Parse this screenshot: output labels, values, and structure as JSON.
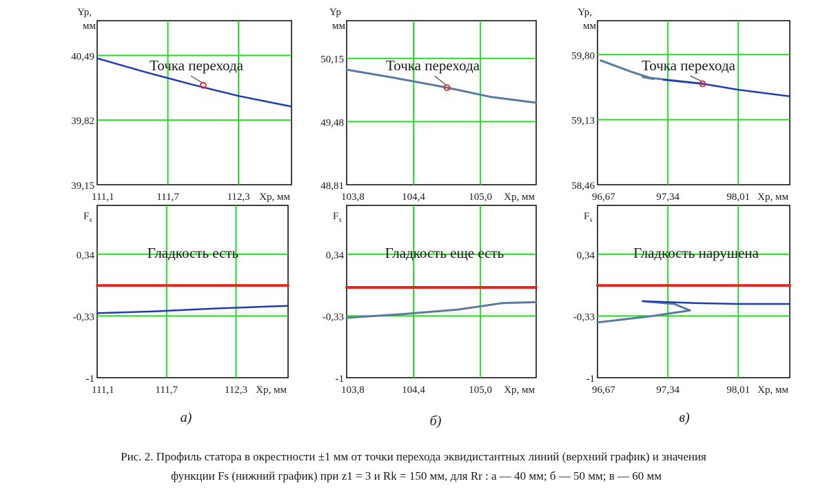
{
  "caption": {
    "line1": "Рис. 2. Профиль статора в окрестности ±1 мм от точки перехода эквидистантных линий (верхний график) и значения",
    "line2": "функции Fs (нижний график) при  z1 = 3  и  Rk = 150 мм,  для Rr : а — 40 мм;  б — 50 мм; в — 60 мм"
  },
  "colors": {
    "grid": "#22dd22",
    "profile": "#1e3bb0",
    "profile_alt": "#5a7aa0",
    "threshold": "#e8251f",
    "marker": "#e8251f",
    "frame": "#000000"
  },
  "chart_data": [
    {
      "type": "line",
      "panel": "а) top",
      "xlabel": "Xp, мм",
      "ylabel": "Yp, мм",
      "ylabel_line1": "Yp,",
      "ylabel_line2": "мм",
      "xlim": [
        111.1,
        112.75
      ],
      "ylim": [
        39.15,
        40.85
      ],
      "xticks": [
        111.1,
        111.7,
        112.3
      ],
      "xtick_labels": [
        "111,1",
        "111,7",
        "112,3"
      ],
      "yticks": [
        39.15,
        39.82,
        40.49
      ],
      "ytick_labels": [
        "39,15",
        "39,82",
        "40,49"
      ],
      "annotation": "Точка перехода",
      "marker_point": {
        "x": 112.0,
        "y": 40.18
      },
      "series": [
        {
          "x": [
            111.1,
            111.5,
            111.9,
            112.3,
            112.75
          ],
          "y": [
            40.46,
            40.32,
            40.19,
            40.07,
            39.96
          ],
          "color": "profile",
          "width": 2.5
        }
      ]
    },
    {
      "type": "line",
      "panel": "б) top",
      "xlabel": "Xp, мм",
      "ylabel": "Yp, мм",
      "ylabel_line1": "Yp",
      "ylabel_line2": "мм",
      "xlim": [
        103.8,
        105.5
      ],
      "ylim": [
        48.81,
        50.55
      ],
      "xticks": [
        103.8,
        104.4,
        105.0
      ],
      "xtick_labels": [
        "103,8",
        "104,4",
        "105,0"
      ],
      "yticks": [
        48.81,
        49.48,
        50.15
      ],
      "ytick_labels": [
        "48,81",
        "49,48",
        "50,15"
      ],
      "annotation": "Точка перехода",
      "marker_point": {
        "x": 104.7,
        "y": 49.84
      },
      "series": [
        {
          "x": [
            103.8,
            104.2,
            104.7,
            105.1,
            105.5
          ],
          "y": [
            50.03,
            49.95,
            49.84,
            49.74,
            49.68
          ],
          "color": "profile_alt",
          "width": 3
        }
      ]
    },
    {
      "type": "line",
      "panel": "в) top",
      "xlabel": "Xp, мм",
      "ylabel": "Yp, мм",
      "ylabel_line1": "Yp,",
      "ylabel_line2": "мм",
      "xlim": [
        96.67,
        98.5
      ],
      "ylim": [
        58.46,
        60.15
      ],
      "xticks": [
        96.67,
        97.34,
        98.01
      ],
      "xtick_labels": [
        "96,67",
        "97,34",
        "98,01"
      ],
      "yticks": [
        58.46,
        59.13,
        59.8
      ],
      "ytick_labels": [
        "58,46",
        "59,13",
        "59,80"
      ],
      "annotation": "Точка перехода",
      "marker_point": {
        "x": 97.67,
        "y": 59.5
      },
      "series": [
        {
          "x": [
            96.7,
            97.0,
            97.2,
            97.1,
            97.67
          ],
          "y": [
            59.74,
            59.62,
            59.55,
            59.57,
            59.5
          ],
          "color": "profile_alt",
          "width": 3
        },
        {
          "x": [
            97.3,
            97.67,
            98.0,
            98.5
          ],
          "y": [
            59.54,
            59.5,
            59.44,
            59.37
          ],
          "color": "profile",
          "width": 2.5
        }
      ]
    },
    {
      "type": "line",
      "panel": "а) bottom",
      "xlabel": "Xp, мм",
      "ylabel": "Fs",
      "xlim": [
        111.1,
        112.75
      ],
      "ylim": [
        -1.0,
        0.87
      ],
      "xticks": [
        111.1,
        111.7,
        112.3
      ],
      "xtick_labels": [
        "111,1",
        "111,7",
        "112,3"
      ],
      "yticks": [
        -1.0,
        -0.33,
        0.34
      ],
      "ytick_labels": [
        "-1",
        "-0,33",
        "0,34"
      ],
      "annotation": "Гладкость есть",
      "series": [
        {
          "name": "",
          "x": [
            111.1,
            112.75
          ],
          "y": [
            0.0,
            0.0
          ],
          "color": "threshold",
          "width": 4
        },
        {
          "x": [
            111.1,
            111.6,
            112.1,
            112.75
          ],
          "y": [
            -0.3,
            -0.28,
            -0.25,
            -0.22
          ],
          "color": "profile",
          "width": 2.5
        }
      ]
    },
    {
      "type": "line",
      "panel": "б) bottom",
      "xlabel": "Xp, мм",
      "ylabel": "Fs",
      "xlim": [
        103.8,
        105.5
      ],
      "ylim": [
        -1.0,
        0.87
      ],
      "xticks": [
        103.8,
        104.4,
        105.0
      ],
      "xtick_labels": [
        "103,8",
        "104,4",
        "105,0"
      ],
      "yticks": [
        -1.0,
        -0.33,
        0.34
      ],
      "ytick_labels": [
        "-1",
        "-0,33",
        "0,34"
      ],
      "annotation": "Гладкость еще есть",
      "series": [
        {
          "x": [
            103.8,
            105.5
          ],
          "y": [
            -0.02,
            -0.02
          ],
          "color": "threshold",
          "width": 4
        },
        {
          "x": [
            103.8,
            104.3,
            104.8,
            105.2,
            105.5
          ],
          "y": [
            -0.35,
            -0.31,
            -0.26,
            -0.19,
            -0.18
          ],
          "color": "profile_alt",
          "width": 3
        }
      ]
    },
    {
      "type": "line",
      "panel": "в) bottom",
      "xlabel": "Xp, мм",
      "ylabel": "Fs",
      "xlim": [
        96.67,
        98.5
      ],
      "ylim": [
        -1.0,
        0.87
      ],
      "xticks": [
        96.67,
        97.34,
        98.01
      ],
      "xtick_labels": [
        "96,67",
        "97,34",
        "98,01"
      ],
      "yticks": [
        -1.0,
        -0.33,
        0.34
      ],
      "ytick_labels": [
        "-1",
        "-0,33",
        "0,34"
      ],
      "annotation": "Гладкость нарушена",
      "series": [
        {
          "x": [
            96.67,
            98.5
          ],
          "y": [
            0.0,
            0.0
          ],
          "color": "threshold",
          "width": 4
        },
        {
          "x": [
            96.67,
            97.2,
            97.55,
            97.4,
            97.1
          ],
          "y": [
            -0.4,
            -0.33,
            -0.27,
            -0.2,
            -0.17
          ],
          "color": "profile_alt",
          "width": 3
        },
        {
          "x": [
            97.1,
            97.6,
            98.0,
            98.5
          ],
          "y": [
            -0.17,
            -0.19,
            -0.2,
            -0.2
          ],
          "color": "profile",
          "width": 2.5
        }
      ]
    }
  ],
  "subfig_labels": [
    "а)",
    "б)",
    "в)"
  ]
}
